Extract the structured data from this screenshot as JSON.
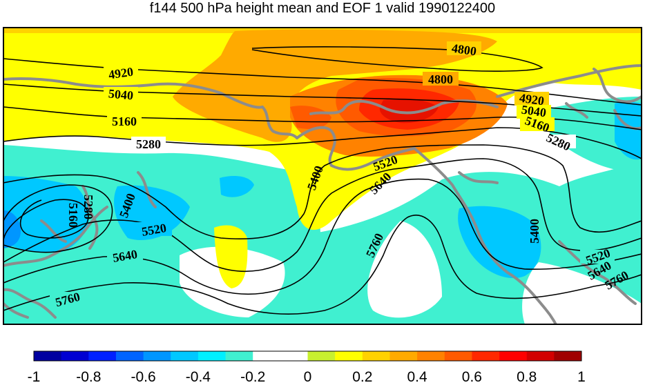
{
  "title": "f144 500 hPa height mean and EOF 1 valid 1990122400",
  "map": {
    "contour_labels": [
      "4800",
      "4800",
      "4920",
      "4920",
      "5040",
      "5040",
      "5160",
      "5160",
      "5280",
      "5280",
      "5160",
      "5280",
      "5400",
      "5400",
      "5400",
      "5520",
      "5520",
      "5520",
      "5640",
      "5640",
      "5640",
      "5760",
      "5760",
      "5760"
    ],
    "colors": {
      "land_outline": "#8c8c8c",
      "contour": "#000000"
    }
  },
  "colorbar": {
    "ticks": [
      "-1",
      "-0.8",
      "-0.6",
      "-0.4",
      "-0.2",
      "0",
      "0.2",
      "0.4",
      "0.6",
      "0.8",
      "1"
    ],
    "colors": [
      "#0000a0",
      "#0000d2",
      "#0020ff",
      "#0064ff",
      "#0096ff",
      "#00c8ff",
      "#00f0ff",
      "#40f0d0",
      "#ffffff",
      "#ffffff",
      "#c8f030",
      "#ffff00",
      "#ffd200",
      "#ffaa00",
      "#ff8200",
      "#ff5a00",
      "#ff2800",
      "#ff0000",
      "#d20000",
      "#a00000"
    ]
  }
}
